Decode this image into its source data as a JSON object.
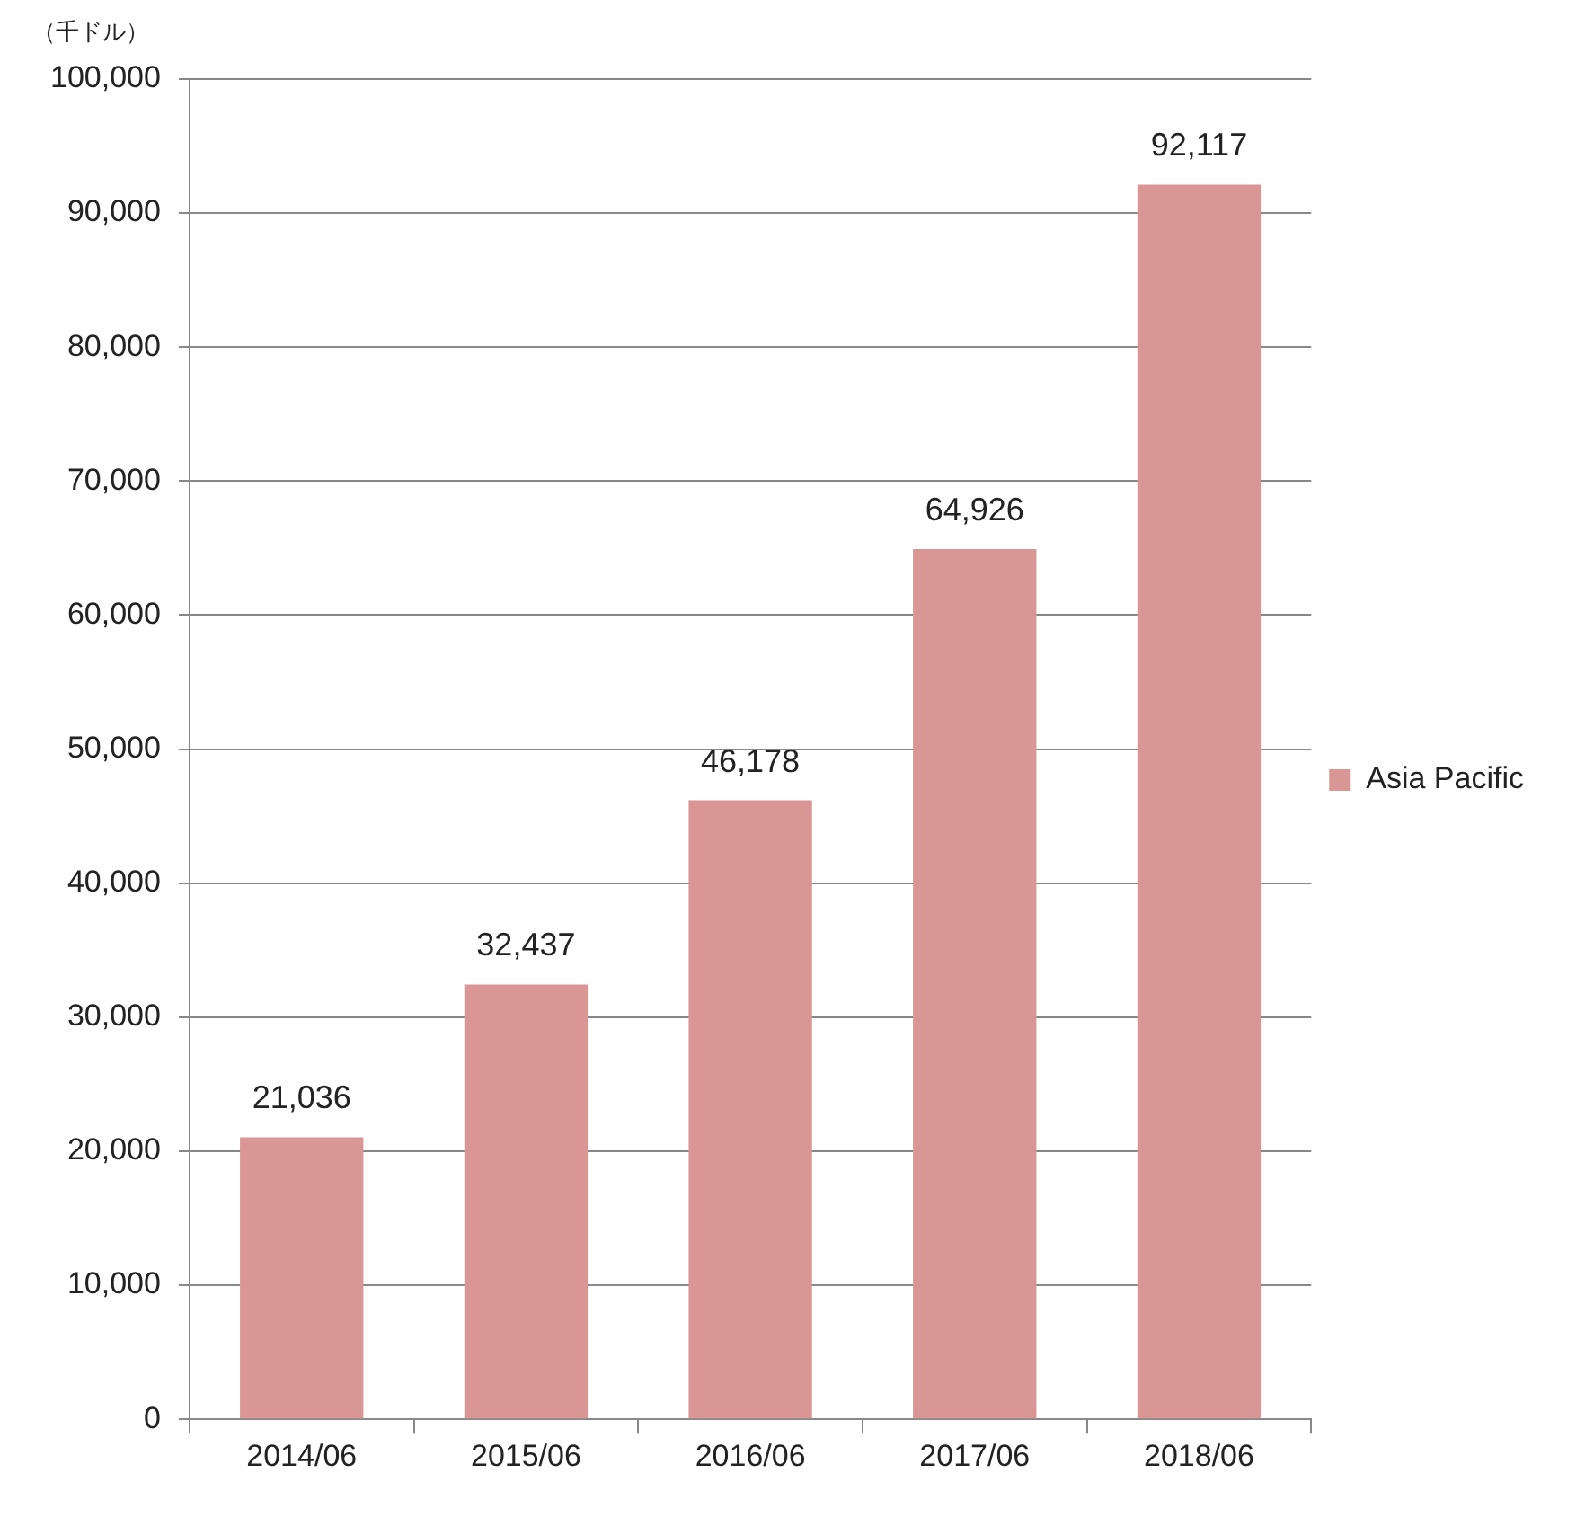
{
  "chart_data": {
    "type": "bar",
    "ylabel": "（千ドル）",
    "categories": [
      "2014/06",
      "2015/06",
      "2016/06",
      "2017/06",
      "2018/06"
    ],
    "series": [
      {
        "name": "Asia Pacific",
        "color": "#d99694",
        "values": [
          21036,
          32437,
          46178,
          64926,
          92117
        ],
        "value_labels": [
          "21,036",
          "32,437",
          "46,178",
          "64,926",
          "92,117"
        ]
      }
    ],
    "ylim": [
      0,
      100000
    ],
    "yticks": [
      0,
      {
        "value": 10000,
        "label": "10,000"
      },
      {
        "value": 20000,
        "label": "20,000"
      },
      {
        "value": 30000,
        "label": "30,000"
      },
      {
        "value": 40000,
        "label": "40,000"
      },
      {
        "value": 50000,
        "label": "50,000"
      },
      {
        "value": 60000,
        "label": "60,000"
      },
      {
        "value": 70000,
        "label": "70,000"
      },
      {
        "value": 80000,
        "label": "80,000"
      },
      {
        "value": 90000,
        "label": "90,000"
      },
      {
        "value": 100000,
        "label": "100,000"
      }
    ],
    "grid": "y",
    "legend": "right"
  }
}
